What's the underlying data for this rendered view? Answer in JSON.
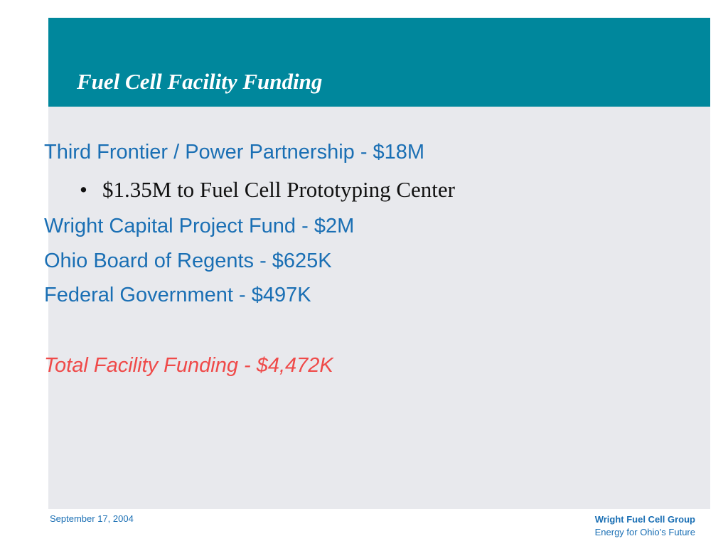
{
  "slide": {
    "title": "Fuel Cell Facility Funding",
    "items": [
      {
        "text": "Third Frontier / Power Partnership - $18M"
      },
      {
        "bullet": "•",
        "text": "$1.35M to Fuel Cell Prototyping Center"
      },
      {
        "text": "Wright Capital Project Fund - $2M"
      },
      {
        "text": "Ohio Board of Regents - $625K"
      },
      {
        "text": "Federal Government - $497K"
      }
    ],
    "total": "Total Facility Funding - $4,472K"
  },
  "footer": {
    "date": "September 17, 2004",
    "org_name": "Wright Fuel Cell Group",
    "tagline": "Energy for Ohio’s Future"
  },
  "colors": {
    "header_band": "#00879c",
    "body_text": "#1a6fb4",
    "total_text": "#ef4a49",
    "panel_background": "#e8e9ed"
  }
}
